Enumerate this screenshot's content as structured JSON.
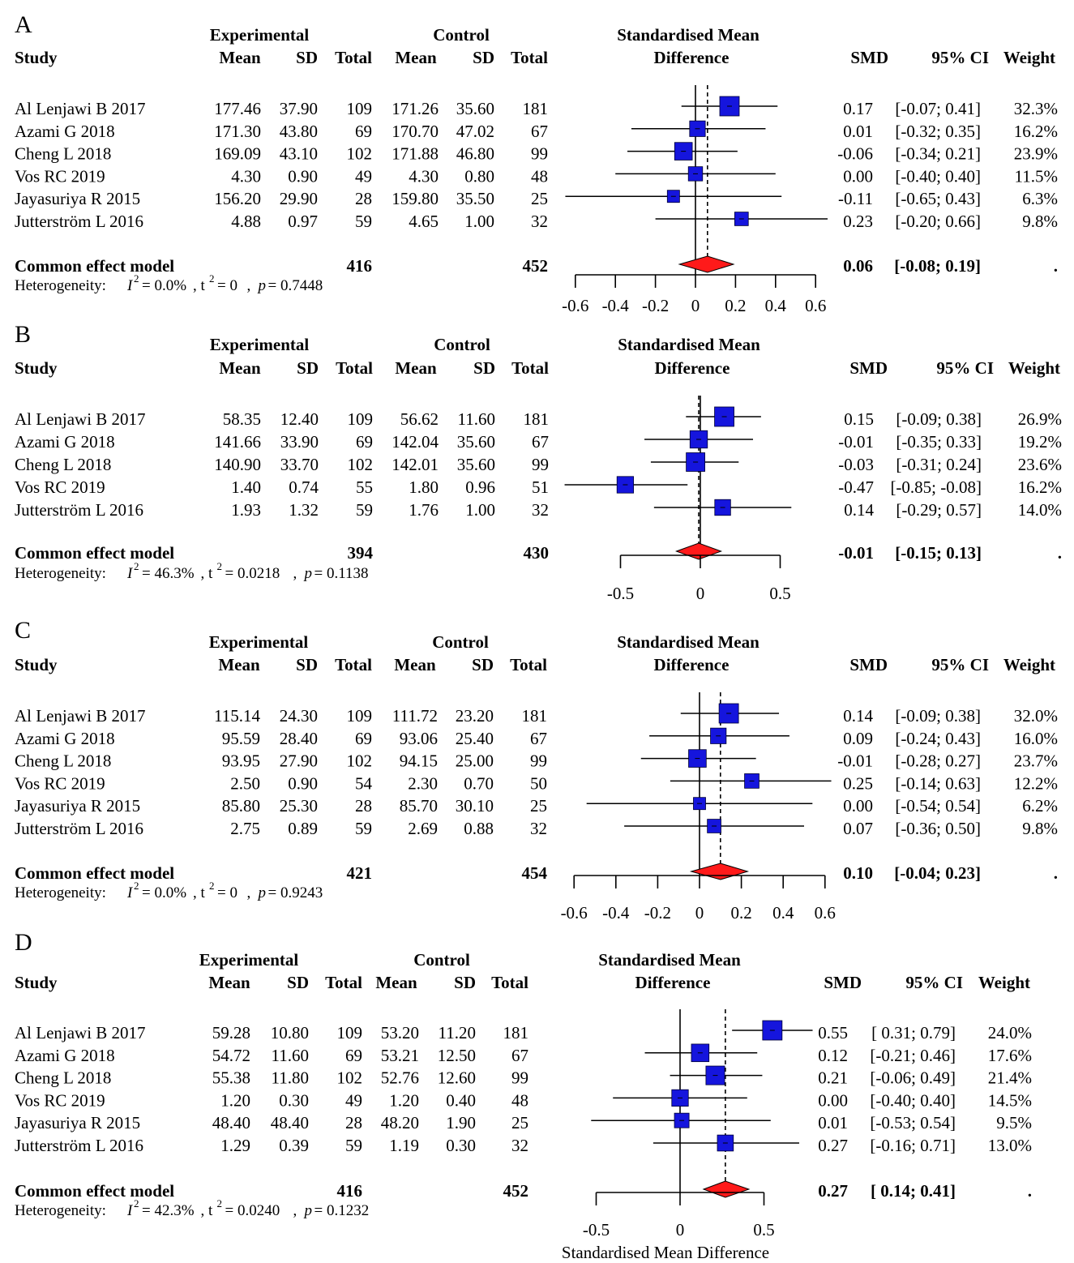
{
  "colors": {
    "study_marker": "#1515dd",
    "pooled_diamond": "#ff1a1a",
    "text": "#000000"
  },
  "x_axis_title": "Standardised Mean Difference",
  "chart_data": [
    {
      "type": "forest",
      "panel_label": "A",
      "headers": {
        "study": "Study",
        "experimental": "Experimental",
        "control": "Control",
        "mean": "Mean",
        "sd": "SD",
        "total": "Total",
        "smd_title_1": "Standardised Mean",
        "smd_title_2": "Difference",
        "smd": "SMD",
        "ci": "95% CI",
        "weight": "Weight"
      },
      "studies": [
        {
          "study": "Al Lenjawi B 2017",
          "e_mean": "177.46",
          "e_sd": "37.90",
          "e_total": "109",
          "c_mean": "171.26",
          "c_sd": "35.60",
          "c_total": "181",
          "smd": 0.17,
          "lower": -0.07,
          "upper": 0.41,
          "weight_pct": 32.3,
          "smd_text": "0.17",
          "ci_text": "[-0.07; 0.41]",
          "weight_text": "32.3%"
        },
        {
          "study": "Azami G 2018",
          "e_mean": "171.30",
          "e_sd": "43.80",
          "e_total": "69",
          "c_mean": "170.70",
          "c_sd": "47.02",
          "c_total": "67",
          "smd": 0.01,
          "lower": -0.32,
          "upper": 0.35,
          "weight_pct": 16.2,
          "smd_text": "0.01",
          "ci_text": "[-0.32; 0.35]",
          "weight_text": "16.2%"
        },
        {
          "study": "Cheng L 2018",
          "e_mean": "169.09",
          "e_sd": "43.10",
          "e_total": "102",
          "c_mean": "171.88",
          "c_sd": "46.80",
          "c_total": "99",
          "smd": -0.06,
          "lower": -0.34,
          "upper": 0.21,
          "weight_pct": 23.9,
          "smd_text": "-0.06",
          "ci_text": "[-0.34; 0.21]",
          "weight_text": "23.9%"
        },
        {
          "study": "Vos RC 2019",
          "e_mean": "4.30",
          "e_sd": "0.90",
          "e_total": "49",
          "c_mean": "4.30",
          "c_sd": "0.80",
          "c_total": "48",
          "smd": 0.0,
          "lower": -0.4,
          "upper": 0.4,
          "weight_pct": 11.5,
          "smd_text": "0.00",
          "ci_text": "[-0.40; 0.40]",
          "weight_text": "11.5%"
        },
        {
          "study": "Jayasuriya R 2015",
          "e_mean": "156.20",
          "e_sd": "29.90",
          "e_total": "28",
          "c_mean": "159.80",
          "c_sd": "35.50",
          "c_total": "25",
          "smd": -0.11,
          "lower": -0.65,
          "upper": 0.43,
          "weight_pct": 6.3,
          "smd_text": "-0.11",
          "ci_text": "[-0.65; 0.43]",
          "weight_text": "6.3%"
        },
        {
          "study": "Jutterström L 2016",
          "e_mean": "4.88",
          "e_sd": "0.97",
          "e_total": "59",
          "c_mean": "4.65",
          "c_sd": "1.00",
          "c_total": "32",
          "smd": 0.23,
          "lower": -0.2,
          "upper": 0.66,
          "weight_pct": 9.8,
          "smd_text": "0.23",
          "ci_text": "[-0.20; 0.66]",
          "weight_text": "9.8%"
        }
      ],
      "pooled": {
        "label": "Common effect model",
        "e_total": "416",
        "c_total": "452",
        "smd": 0.06,
        "lower": -0.08,
        "upper": 0.19,
        "smd_text": "0.06",
        "ci_text": "[-0.08; 0.19]",
        "weight_text": "."
      },
      "heterogeneity": {
        "label": "Heterogeneity:",
        "i2": "= 0.0%",
        "tau2": "= 0",
        "p": "= 0.7448"
      },
      "axis": {
        "range": [
          -0.6,
          0.6
        ],
        "ticks": [
          -0.6,
          -0.4,
          -0.2,
          0,
          0.2,
          0.4,
          0.6
        ],
        "tick_labels": [
          "-0.6",
          "-0.4",
          "-0.2",
          "0",
          "0.2",
          "0.4",
          "0.6"
        ]
      },
      "show_axis_title": false
    },
    {
      "type": "forest",
      "panel_label": "B",
      "headers": {
        "study": "Study",
        "experimental": "Experimental",
        "control": "Control",
        "mean": "Mean",
        "sd": "SD",
        "total": "Total",
        "smd_title_1": "Standardised Mean",
        "smd_title_2": "Difference",
        "smd": "SMD",
        "ci": "95% CI",
        "weight": "Weight"
      },
      "studies": [
        {
          "study": "Al Lenjawi B 2017",
          "e_mean": "58.35",
          "e_sd": "12.40",
          "e_total": "109",
          "c_mean": "56.62",
          "c_sd": "11.60",
          "c_total": "181",
          "smd": 0.15,
          "lower": -0.09,
          "upper": 0.38,
          "weight_pct": 26.9,
          "smd_text": "0.15",
          "ci_text": "[-0.09; 0.38]",
          "weight_text": "26.9%"
        },
        {
          "study": "Azami G 2018",
          "e_mean": "141.66",
          "e_sd": "33.90",
          "e_total": "69",
          "c_mean": "142.04",
          "c_sd": "35.60",
          "c_total": "67",
          "smd": -0.01,
          "lower": -0.35,
          "upper": 0.33,
          "weight_pct": 19.2,
          "smd_text": "-0.01",
          "ci_text": "[-0.35; 0.33]",
          "weight_text": "19.2%"
        },
        {
          "study": "Cheng L 2018",
          "e_mean": "140.90",
          "e_sd": "33.70",
          "e_total": "102",
          "c_mean": "142.01",
          "c_sd": "35.60",
          "c_total": "99",
          "smd": -0.03,
          "lower": -0.31,
          "upper": 0.24,
          "weight_pct": 23.6,
          "smd_text": "-0.03",
          "ci_text": "[-0.31; 0.24]",
          "weight_text": "23.6%"
        },
        {
          "study": "Vos RC 2019",
          "e_mean": "1.40",
          "e_sd": "0.74",
          "e_total": "55",
          "c_mean": "1.80",
          "c_sd": "0.96",
          "c_total": "51",
          "smd": -0.47,
          "lower": -0.85,
          "upper": -0.08,
          "weight_pct": 16.2,
          "smd_text": "-0.47",
          "ci_text": "[-0.85; -0.08]",
          "weight_text": "16.2%"
        },
        {
          "study": "Jutterström L 2016",
          "e_mean": "1.93",
          "e_sd": "1.32",
          "e_total": "59",
          "c_mean": "1.76",
          "c_sd": "1.00",
          "c_total": "32",
          "smd": 0.14,
          "lower": -0.29,
          "upper": 0.57,
          "weight_pct": 14.0,
          "smd_text": "0.14",
          "ci_text": "[-0.29; 0.57]",
          "weight_text": "14.0%"
        }
      ],
      "pooled": {
        "label": "Common effect model",
        "e_total": "394",
        "c_total": "430",
        "smd": -0.01,
        "lower": -0.15,
        "upper": 0.13,
        "smd_text": "-0.01",
        "ci_text": "[-0.15; 0.13]",
        "weight_text": "."
      },
      "heterogeneity": {
        "label": "Heterogeneity:",
        "i2": "= 46.3%",
        "tau2": "= 0.0218",
        "p": "= 0.1138"
      },
      "axis": {
        "range": [
          -0.5,
          0.5
        ],
        "ticks": [
          -0.5,
          0,
          0.5
        ],
        "tick_labels": [
          "-0.5",
          "0",
          "0.5"
        ]
      },
      "show_axis_title": false
    },
    {
      "type": "forest",
      "panel_label": "C",
      "headers": {
        "study": "Study",
        "experimental": "Experimental",
        "control": "Control",
        "mean": "Mean",
        "sd": "SD",
        "total": "Total",
        "smd_title_1": "Standardised Mean",
        "smd_title_2": "Difference",
        "smd": "SMD",
        "ci": "95% CI",
        "weight": "Weight"
      },
      "studies": [
        {
          "study": "Al Lenjawi B 2017",
          "e_mean": "115.14",
          "e_sd": "24.30",
          "e_total": "109",
          "c_mean": "111.72",
          "c_sd": "23.20",
          "c_total": "181",
          "smd": 0.14,
          "lower": -0.09,
          "upper": 0.38,
          "weight_pct": 32.0,
          "smd_text": "0.14",
          "ci_text": "[-0.09; 0.38]",
          "weight_text": "32.0%"
        },
        {
          "study": "Azami G 2018",
          "e_mean": "95.59",
          "e_sd": "28.40",
          "e_total": "69",
          "c_mean": "93.06",
          "c_sd": "25.40",
          "c_total": "67",
          "smd": 0.09,
          "lower": -0.24,
          "upper": 0.43,
          "weight_pct": 16.0,
          "smd_text": "0.09",
          "ci_text": "[-0.24; 0.43]",
          "weight_text": "16.0%"
        },
        {
          "study": "Cheng L 2018",
          "e_mean": "93.95",
          "e_sd": "27.90",
          "e_total": "102",
          "c_mean": "94.15",
          "c_sd": "25.00",
          "c_total": "99",
          "smd": -0.01,
          "lower": -0.28,
          "upper": 0.27,
          "weight_pct": 23.7,
          "smd_text": "-0.01",
          "ci_text": "[-0.28; 0.27]",
          "weight_text": "23.7%"
        },
        {
          "study": "Vos RC 2019",
          "e_mean": "2.50",
          "e_sd": "0.90",
          "e_total": "54",
          "c_mean": "2.30",
          "c_sd": "0.70",
          "c_total": "50",
          "smd": 0.25,
          "lower": -0.14,
          "upper": 0.63,
          "weight_pct": 12.2,
          "smd_text": "0.25",
          "ci_text": "[-0.14; 0.63]",
          "weight_text": "12.2%"
        },
        {
          "study": "Jayasuriya R 2015",
          "e_mean": "85.80",
          "e_sd": "25.30",
          "e_total": "28",
          "c_mean": "85.70",
          "c_sd": "30.10",
          "c_total": "25",
          "smd": 0.0,
          "lower": -0.54,
          "upper": 0.54,
          "weight_pct": 6.2,
          "smd_text": "0.00",
          "ci_text": "[-0.54; 0.54]",
          "weight_text": "6.2%"
        },
        {
          "study": "Jutterström L 2016",
          "e_mean": "2.75",
          "e_sd": "0.89",
          "e_total": "59",
          "c_mean": "2.69",
          "c_sd": "0.88",
          "c_total": "32",
          "smd": 0.07,
          "lower": -0.36,
          "upper": 0.5,
          "weight_pct": 9.8,
          "smd_text": "0.07",
          "ci_text": "[-0.36; 0.50]",
          "weight_text": "9.8%"
        }
      ],
      "pooled": {
        "label": "Common effect model",
        "e_total": "421",
        "c_total": "454",
        "smd": 0.1,
        "lower": -0.04,
        "upper": 0.23,
        "smd_text": "0.10",
        "ci_text": "[-0.04; 0.23]",
        "weight_text": "."
      },
      "heterogeneity": {
        "label": "Heterogeneity:",
        "i2": "= 0.0%",
        "tau2": "= 0",
        "p": "= 0.9243"
      },
      "axis": {
        "range": [
          -0.6,
          0.6
        ],
        "ticks": [
          -0.6,
          -0.4,
          -0.2,
          0,
          0.2,
          0.4,
          0.6
        ],
        "tick_labels": [
          "-0.6",
          "-0.4",
          "-0.2",
          "0",
          "0.2",
          "0.4",
          "0.6"
        ]
      },
      "show_axis_title": false
    },
    {
      "type": "forest",
      "panel_label": "D",
      "headers": {
        "study": "Study",
        "experimental": "Experimental",
        "control": "Control",
        "mean": "Mean",
        "sd": "SD",
        "total": "Total",
        "smd_title_1": "Standardised Mean",
        "smd_title_2": "Difference",
        "smd": "SMD",
        "ci": "95% CI",
        "weight": "Weight"
      },
      "studies": [
        {
          "study": "Al Lenjawi B 2017",
          "e_mean": "59.28",
          "e_sd": "10.80",
          "e_total": "109",
          "c_mean": "53.20",
          "c_sd": "11.20",
          "c_total": "181",
          "smd": 0.55,
          "lower": 0.31,
          "upper": 0.79,
          "weight_pct": 24.0,
          "smd_text": "0.55",
          "ci_text": "[ 0.31; 0.79]",
          "weight_text": "24.0%"
        },
        {
          "study": "Azami G 2018",
          "e_mean": "54.72",
          "e_sd": "11.60",
          "e_total": "69",
          "c_mean": "53.21",
          "c_sd": "12.50",
          "c_total": "67",
          "smd": 0.12,
          "lower": -0.21,
          "upper": 0.46,
          "weight_pct": 17.6,
          "smd_text": "0.12",
          "ci_text": "[-0.21; 0.46]",
          "weight_text": "17.6%"
        },
        {
          "study": "Cheng L 2018",
          "e_mean": "55.38",
          "e_sd": "11.80",
          "e_total": "102",
          "c_mean": "52.76",
          "c_sd": "12.60",
          "c_total": "99",
          "smd": 0.21,
          "lower": -0.06,
          "upper": 0.49,
          "weight_pct": 21.4,
          "smd_text": "0.21",
          "ci_text": "[-0.06; 0.49]",
          "weight_text": "21.4%"
        },
        {
          "study": "Vos RC 2019",
          "e_mean": "1.20",
          "e_sd": "0.30",
          "e_total": "49",
          "c_mean": "1.20",
          "c_sd": "0.40",
          "c_total": "48",
          "smd": 0.0,
          "lower": -0.4,
          "upper": 0.4,
          "weight_pct": 14.5,
          "smd_text": "0.00",
          "ci_text": "[-0.40; 0.40]",
          "weight_text": "14.5%"
        },
        {
          "study": "Jayasuriya R 2015",
          "e_mean": "48.40",
          "e_sd": "48.40",
          "e_total": "28",
          "c_mean": "48.20",
          "c_sd": "1.90",
          "c_total": "25",
          "smd": 0.01,
          "lower": -0.53,
          "upper": 0.54,
          "weight_pct": 9.5,
          "smd_text": "0.01",
          "ci_text": "[-0.53; 0.54]",
          "weight_text": "9.5%"
        },
        {
          "study": "Jutterström L 2016",
          "e_mean": "1.29",
          "e_sd": "0.39",
          "e_total": "59",
          "c_mean": "1.19",
          "c_sd": "0.30",
          "c_total": "32",
          "smd": 0.27,
          "lower": -0.16,
          "upper": 0.71,
          "weight_pct": 13.0,
          "smd_text": "0.27",
          "ci_text": "[-0.16; 0.71]",
          "weight_text": "13.0%"
        }
      ],
      "pooled": {
        "label": "Common effect model",
        "e_total": "416",
        "c_total": "452",
        "smd": 0.27,
        "lower": 0.14,
        "upper": 0.41,
        "smd_text": "0.27",
        "ci_text": "[ 0.14; 0.41]",
        "weight_text": "."
      },
      "heterogeneity": {
        "label": "Heterogeneity:",
        "i2": "= 42.3%",
        "tau2": "= 0.0240",
        "p": "= 0.1232"
      },
      "axis": {
        "range": [
          -0.5,
          0.5
        ],
        "ticks": [
          -0.5,
          0,
          0.5
        ],
        "tick_labels": [
          "-0.5",
          "0",
          "0.5"
        ]
      },
      "show_axis_title": true
    }
  ]
}
